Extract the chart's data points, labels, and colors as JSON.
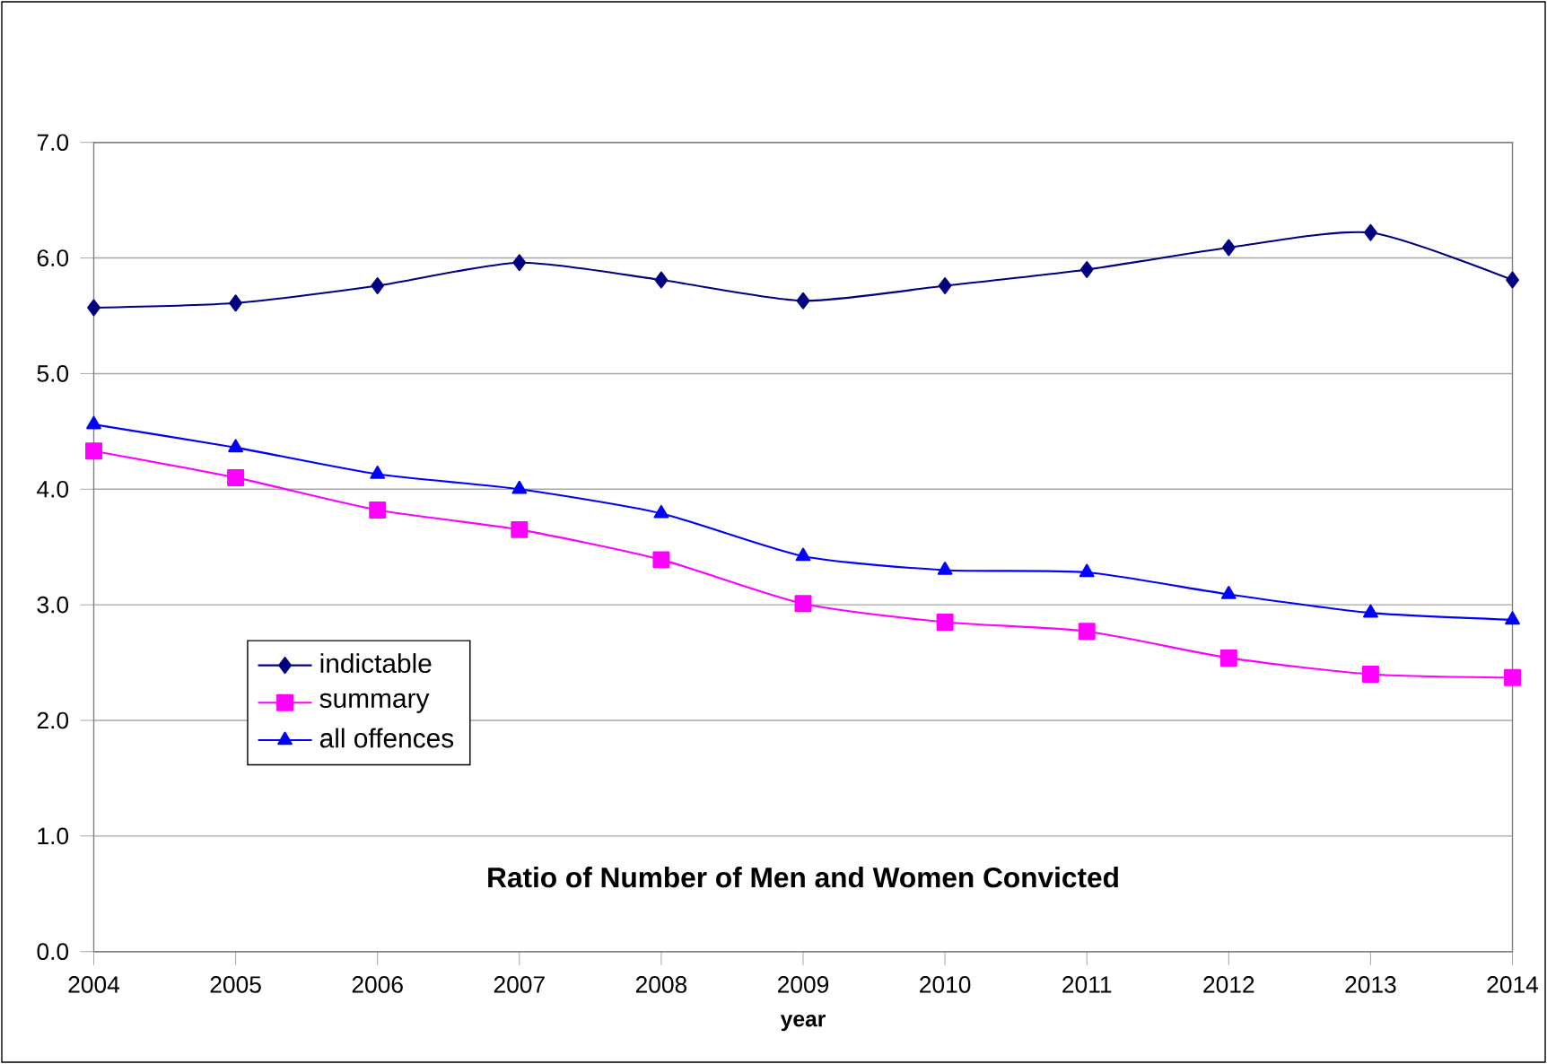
{
  "chart_data": {
    "type": "line",
    "title": "Ratio of Number of Men and Women Convicted",
    "xlabel": "year",
    "x": [
      2004,
      2005,
      2006,
      2007,
      2008,
      2009,
      2010,
      2011,
      2012,
      2013,
      2014
    ],
    "series": [
      {
        "name": "indictable",
        "color": "#000080",
        "marker": "diamond",
        "values": [
          5.57,
          5.61,
          5.76,
          5.96,
          5.81,
          5.63,
          5.76,
          5.9,
          6.09,
          6.22,
          5.81
        ]
      },
      {
        "name": "summary",
        "color": "#ff00ff",
        "marker": "square",
        "values": [
          4.33,
          4.1,
          3.82,
          3.65,
          3.39,
          3.01,
          2.85,
          2.77,
          2.54,
          2.4,
          2.37
        ]
      },
      {
        "name": "all offences",
        "color": "#0000ff",
        "marker": "triangle",
        "values": [
          4.56,
          4.36,
          4.13,
          4.0,
          3.79,
          3.42,
          3.3,
          3.28,
          3.09,
          2.93,
          2.87
        ]
      }
    ],
    "xlim": [
      2004,
      2014
    ],
    "xticks": [
      2004,
      2005,
      2006,
      2007,
      2008,
      2009,
      2010,
      2011,
      2012,
      2013,
      2014
    ],
    "ylim": [
      0,
      7
    ],
    "yticks": [
      {
        "value": 0,
        "label": "0.0"
      },
      {
        "value": 1,
        "label": "1.0"
      },
      {
        "value": 2,
        "label": "2.0"
      },
      {
        "value": 3,
        "label": "3.0"
      },
      {
        "value": 4,
        "label": "4.0"
      },
      {
        "value": 5,
        "label": "5.0"
      },
      {
        "value": 6,
        "label": "6.0"
      },
      {
        "value": 7,
        "label": "7.0"
      }
    ],
    "grid": "y",
    "legend": "bottom left",
    "line_style": "solid"
  }
}
